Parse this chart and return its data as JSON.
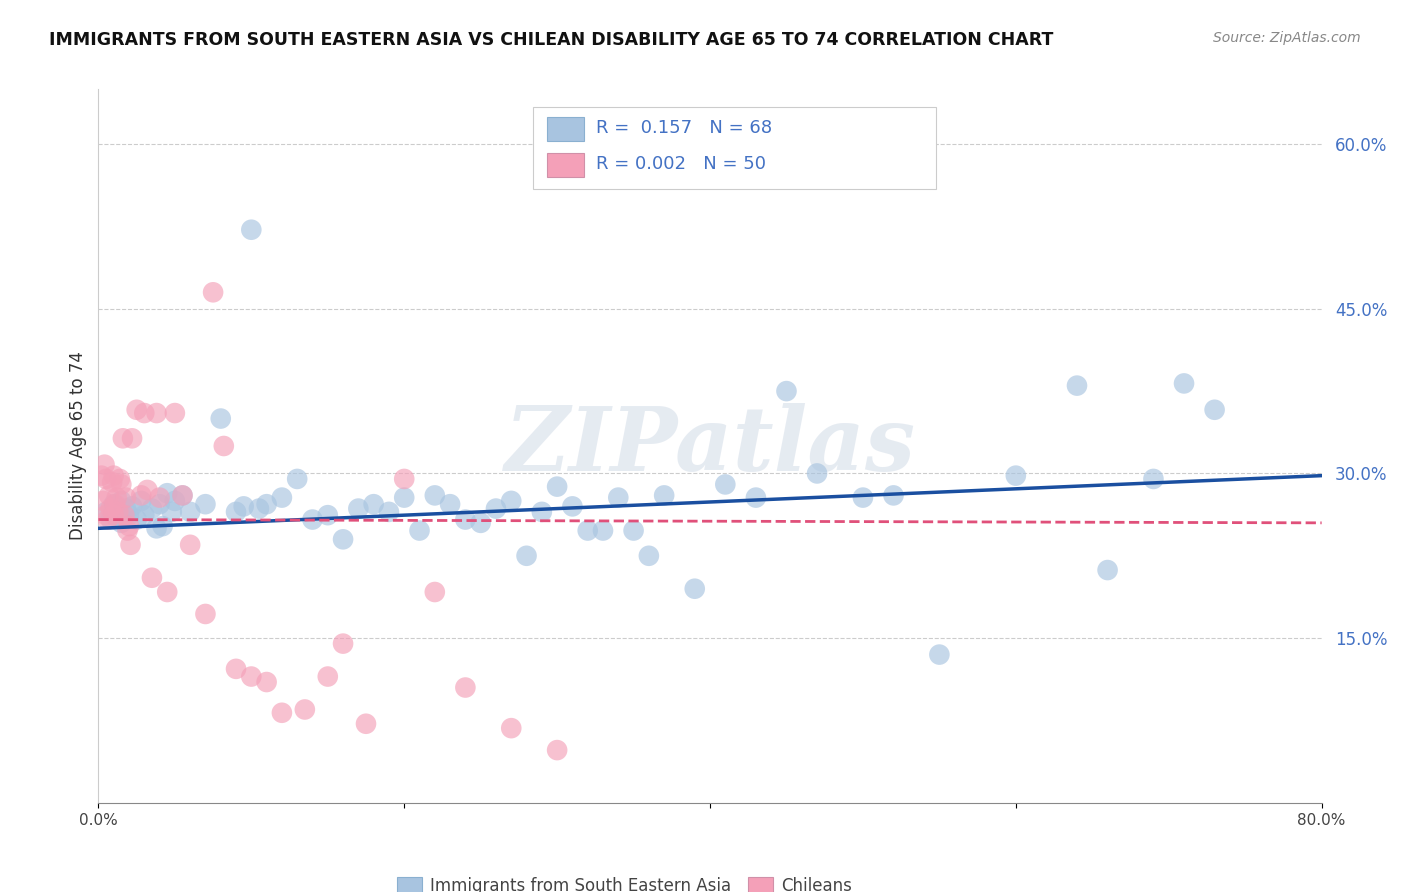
{
  "title": "IMMIGRANTS FROM SOUTH EASTERN ASIA VS CHILEAN DISABILITY AGE 65 TO 74 CORRELATION CHART",
  "source": "Source: ZipAtlas.com",
  "ylabel": "Disability Age 65 to 74",
  "x_ticks": [
    0.0,
    0.2,
    0.4,
    0.6,
    0.8
  ],
  "x_tick_labels": [
    "0.0%",
    "",
    "",
    "",
    "80.0%"
  ],
  "y_ticks_right": [
    0.15,
    0.3,
    0.45,
    0.6
  ],
  "y_tick_labels_right": [
    "15.0%",
    "30.0%",
    "45.0%",
    "60.0%"
  ],
  "xlim": [
    0.0,
    0.8
  ],
  "ylim": [
    0.0,
    0.65
  ],
  "blue_r": "0.157",
  "blue_n": "68",
  "pink_r": "0.002",
  "pink_n": "50",
  "blue_scatter_color": "#a8c4e0",
  "blue_line_color": "#1a4fa0",
  "pink_scatter_color": "#f4a0b8",
  "pink_line_color": "#e0507a",
  "watermark": "ZIPatlas",
  "legend_label_blue": "Immigrants from South Eastern Asia",
  "legend_label_pink": "Chileans",
  "blue_scatter_x": [
    0.005,
    0.008,
    0.01,
    0.012,
    0.015,
    0.015,
    0.018,
    0.02,
    0.022,
    0.025,
    0.028,
    0.03,
    0.035,
    0.038,
    0.04,
    0.042,
    0.045,
    0.048,
    0.05,
    0.055,
    0.06,
    0.07,
    0.08,
    0.09,
    0.095,
    0.1,
    0.105,
    0.11,
    0.12,
    0.13,
    0.14,
    0.15,
    0.16,
    0.17,
    0.18,
    0.19,
    0.2,
    0.21,
    0.22,
    0.23,
    0.24,
    0.25,
    0.26,
    0.27,
    0.28,
    0.29,
    0.3,
    0.31,
    0.32,
    0.33,
    0.34,
    0.35,
    0.36,
    0.37,
    0.39,
    0.41,
    0.43,
    0.45,
    0.47,
    0.5,
    0.52,
    0.55,
    0.6,
    0.64,
    0.66,
    0.69,
    0.71,
    0.73
  ],
  "blue_scatter_y": [
    0.265,
    0.258,
    0.272,
    0.26,
    0.275,
    0.255,
    0.268,
    0.262,
    0.27,
    0.258,
    0.275,
    0.262,
    0.268,
    0.25,
    0.272,
    0.252,
    0.282,
    0.265,
    0.275,
    0.28,
    0.265,
    0.272,
    0.35,
    0.265,
    0.27,
    0.522,
    0.268,
    0.272,
    0.278,
    0.295,
    0.258,
    0.262,
    0.24,
    0.268,
    0.272,
    0.265,
    0.278,
    0.248,
    0.28,
    0.272,
    0.258,
    0.255,
    0.268,
    0.275,
    0.225,
    0.265,
    0.288,
    0.27,
    0.248,
    0.248,
    0.278,
    0.248,
    0.225,
    0.28,
    0.195,
    0.29,
    0.278,
    0.375,
    0.3,
    0.278,
    0.28,
    0.135,
    0.298,
    0.38,
    0.212,
    0.295,
    0.382,
    0.358
  ],
  "pink_scatter_x": [
    0.002,
    0.003,
    0.004,
    0.005,
    0.005,
    0.006,
    0.007,
    0.008,
    0.009,
    0.01,
    0.01,
    0.011,
    0.012,
    0.013,
    0.014,
    0.015,
    0.016,
    0.017,
    0.018,
    0.019,
    0.02,
    0.021,
    0.022,
    0.025,
    0.028,
    0.03,
    0.032,
    0.035,
    0.038,
    0.04,
    0.045,
    0.05,
    0.055,
    0.06,
    0.07,
    0.075,
    0.082,
    0.09,
    0.1,
    0.11,
    0.12,
    0.135,
    0.15,
    0.16,
    0.175,
    0.2,
    0.22,
    0.24,
    0.27,
    0.3
  ],
  "pink_scatter_y": [
    0.298,
    0.275,
    0.308,
    0.262,
    0.295,
    0.258,
    0.28,
    0.268,
    0.292,
    0.262,
    0.298,
    0.272,
    0.278,
    0.265,
    0.295,
    0.29,
    0.332,
    0.262,
    0.278,
    0.248,
    0.252,
    0.235,
    0.332,
    0.358,
    0.28,
    0.355,
    0.285,
    0.205,
    0.355,
    0.278,
    0.192,
    0.355,
    0.28,
    0.235,
    0.172,
    0.465,
    0.325,
    0.122,
    0.115,
    0.11,
    0.082,
    0.085,
    0.115,
    0.145,
    0.072,
    0.295,
    0.192,
    0.105,
    0.068,
    0.048
  ],
  "blue_trend_x": [
    0.0,
    0.8
  ],
  "blue_trend_y": [
    0.25,
    0.298
  ],
  "pink_trend_x": [
    0.0,
    0.8
  ],
  "pink_trend_y": [
    0.258,
    0.255
  ]
}
